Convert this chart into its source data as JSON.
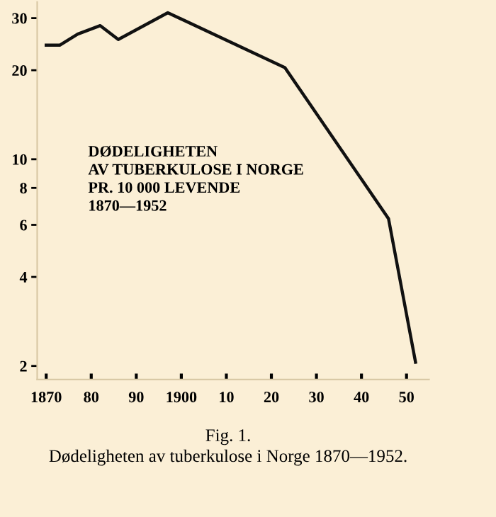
{
  "chart_data": {
    "type": "line",
    "x": [
      1870,
      1873,
      1877,
      1882,
      1886,
      1897,
      1923,
      1946,
      1952
    ],
    "series": [
      {
        "color": "#111111",
        "values": [
          24.3,
          24.3,
          26.5,
          28.3,
          25.4,
          31.3,
          20.4,
          6.3,
          2.06
        ]
      }
    ],
    "log": true,
    "xlim": [
      1868,
      1955
    ],
    "ylim": [
      1.8,
      34
    ],
    "xticks": [
      {
        "value": 1870,
        "label": "1870"
      },
      {
        "value": 1880,
        "label": "80"
      },
      {
        "value": 1890,
        "label": "90"
      },
      {
        "value": 1900,
        "label": "1900"
      },
      {
        "value": 1910,
        "label": "10"
      },
      {
        "value": 1920,
        "label": "20"
      },
      {
        "value": 1930,
        "label": "30"
      },
      {
        "value": 1940,
        "label": "40"
      },
      {
        "value": 1950,
        "label": "50"
      }
    ],
    "yticks": [
      2,
      4,
      6,
      8,
      10,
      20,
      30
    ],
    "grid": false,
    "marker": "none",
    "line_style": "solid",
    "annotations": [
      "DØDELIGHETEN\nAV TUBERKULOSE I NORGE\nPR. 10 000 LEVENDE\n1870—1952",
      "Fig. 1.",
      "Dødeligheten av tuberkulose i Norge 1870—1952."
    ]
  }
}
